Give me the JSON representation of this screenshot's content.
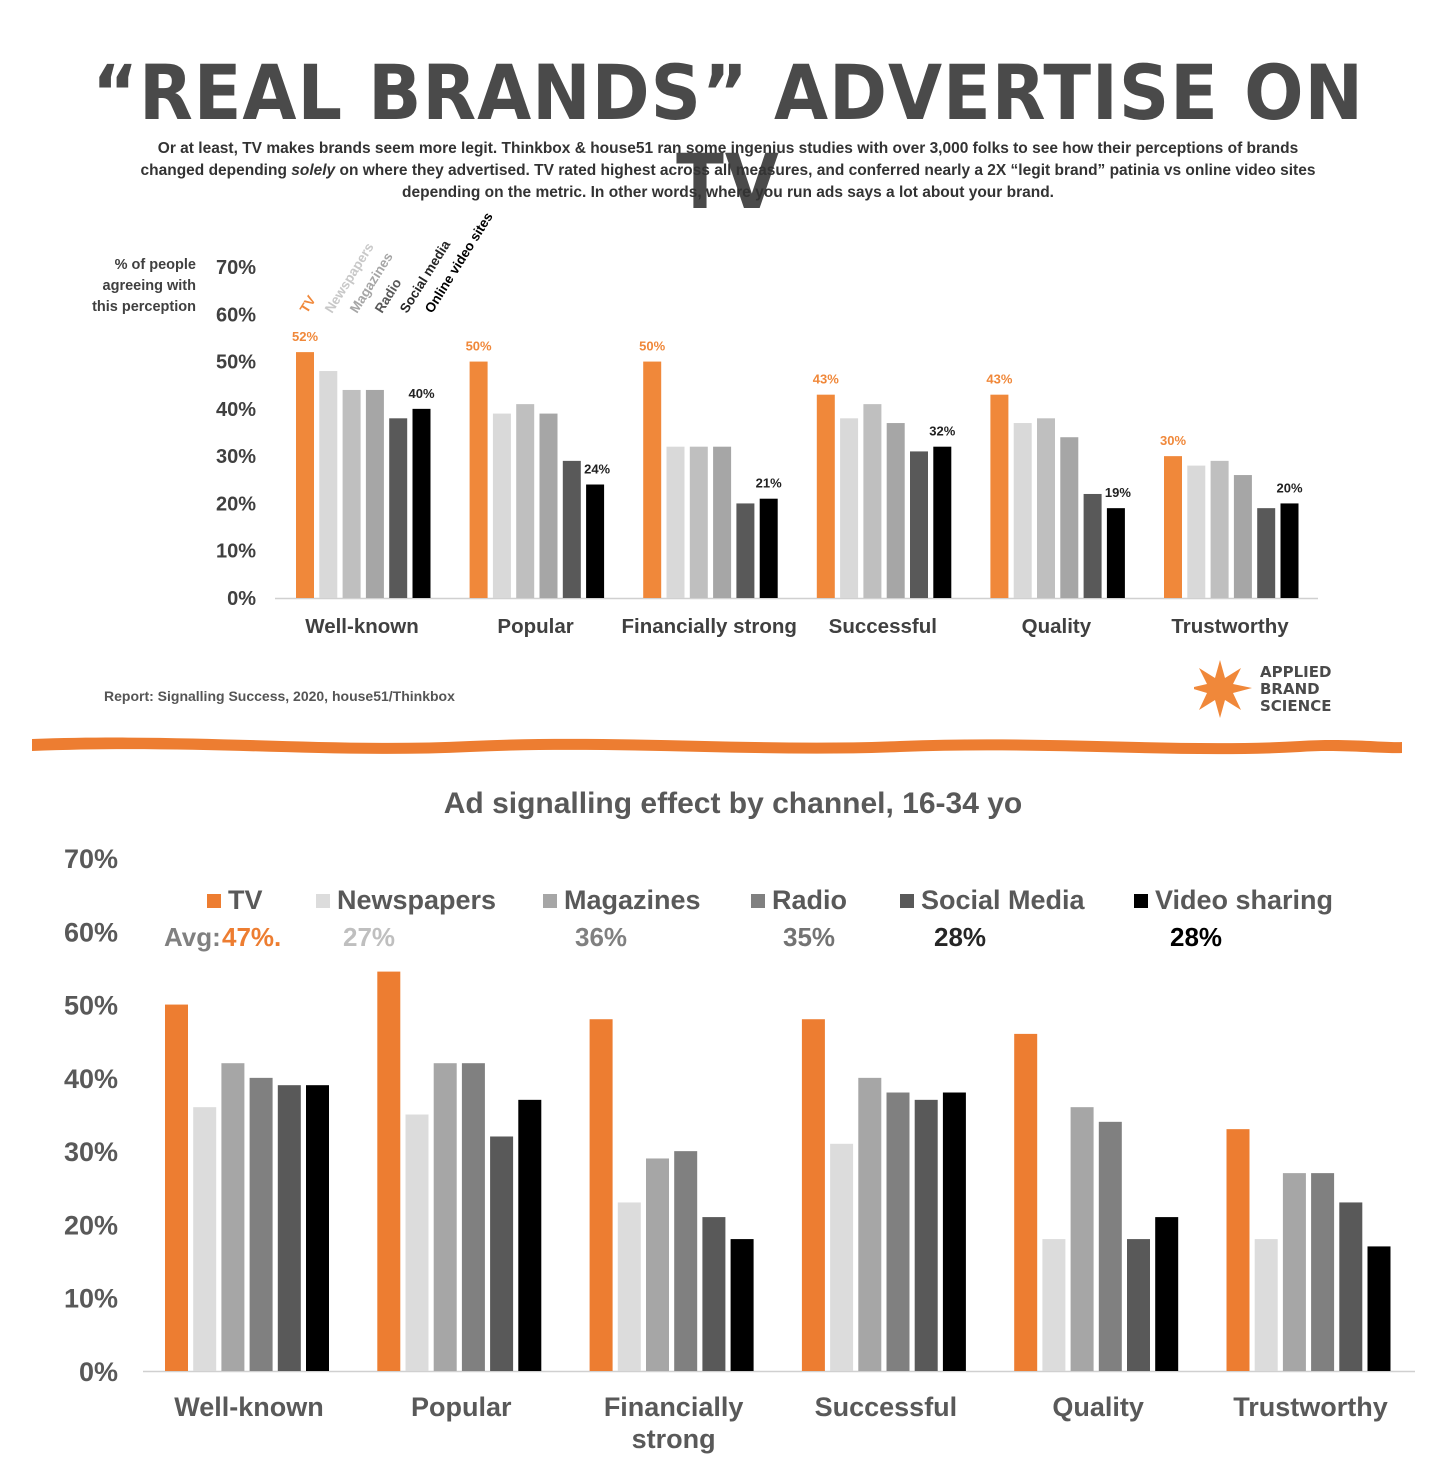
{
  "header": {
    "title": "“REAL BRANDS” ADVERTISE ON TV",
    "intro_part1": "Or at least, TV makes brands seem more legit. Thinkbox & house51 ran some ingenius studies with over 3,000 folks to see how their perceptions of brands changed depending ",
    "intro_emph": "solely",
    "intro_part2": " on where they advertised. TV rated highest across all measures, and conferred nearly a 2X “legit brand” patinia vs online video sites depending on the metric. In other words, where you run ads says a lot about your brand."
  },
  "source": "Report: Signalling Success, 2020, house51/Thinkbox",
  "logo": {
    "line1": "APPLIED",
    "line2": "BRAND",
    "line3": "SCIENCE",
    "icon": "star-burst-icon",
    "color": "#F0883A"
  },
  "chart_data": [
    {
      "type": "bar",
      "ylabel": "% of people agreeing with this perception",
      "ylabel_lines": [
        "% of people",
        "agreeing with",
        "this perception"
      ],
      "ylim": [
        0,
        70
      ],
      "yticks": [
        "0%",
        "10%",
        "20%",
        "30%",
        "40%",
        "50%",
        "60%",
        "70%"
      ],
      "categories": [
        "Well-known",
        "Popular",
        "Financially strong",
        "Successful",
        "Quality",
        "Trustworthy"
      ],
      "legend_placement": "rotated labels above first group",
      "series": [
        {
          "name": "TV",
          "color": "#F0883A",
          "values": [
            52,
            50,
            50,
            43,
            43,
            30
          ],
          "labels": [
            "52%",
            "50%",
            "50%",
            "43%",
            "43%",
            "30%"
          ]
        },
        {
          "name": "Newspapers",
          "color": "#D9D9D9",
          "values": [
            48,
            39,
            32,
            38,
            37,
            28
          ]
        },
        {
          "name": "Magazines",
          "color": "#BFBFBF",
          "values": [
            44,
            41,
            32,
            41,
            38,
            29
          ]
        },
        {
          "name": "Radio",
          "color": "#A6A6A6",
          "values": [
            44,
            39,
            32,
            37,
            34,
            26
          ]
        },
        {
          "name": "Social media",
          "color": "#595959",
          "values": [
            38,
            29,
            20,
            31,
            22,
            19
          ]
        },
        {
          "name": "Online video sites",
          "color": "#000000",
          "values": [
            40,
            24,
            21,
            32,
            19,
            20
          ],
          "labels": [
            "40%",
            "24%",
            "21%",
            "32%",
            "19%",
            "20%"
          ]
        }
      ]
    },
    {
      "type": "bar",
      "title": "Ad signalling effect by channel, 16-34 yo",
      "ylim": [
        0,
        70
      ],
      "yticks": [
        "0%",
        "10%",
        "20%",
        "30%",
        "40%",
        "50%",
        "60%",
        "70%"
      ],
      "categories": [
        "Well-known",
        "Popular",
        "Financially strong",
        "Successful",
        "Quality",
        "Trustworthy"
      ],
      "category_lines": [
        [
          "Well-known"
        ],
        [
          "Popular"
        ],
        [
          "Financially",
          "strong"
        ],
        [
          "Successful"
        ],
        [
          "Quality"
        ],
        [
          "Trustworthy"
        ]
      ],
      "legend_placement": "top",
      "avg_label": "Avg:",
      "series": [
        {
          "name": "TV",
          "color": "#ED7D31",
          "avg": "47%.",
          "avg_color": "#ED7D31",
          "values": [
            50,
            54.5,
            48,
            48,
            46,
            33
          ]
        },
        {
          "name": "Newspapers",
          "color": "#DCDCDC",
          "avg": "27%",
          "avg_color": "#BFBFBF",
          "values": [
            36,
            35,
            23,
            31,
            18,
            18
          ]
        },
        {
          "name": "Magazines",
          "color": "#A6A6A6",
          "avg": "36%",
          "avg_color": "#808080",
          "values": [
            42,
            42,
            29,
            40,
            36,
            27
          ]
        },
        {
          "name": "Radio",
          "color": "#808080",
          "avg": "35%",
          "avg_color": "#737373",
          "values": [
            40,
            42,
            30,
            38,
            34,
            27
          ]
        },
        {
          "name": "Social Media",
          "color": "#595959",
          "avg": "28%",
          "avg_color": "#262626",
          "values": [
            39,
            32,
            21,
            37,
            18,
            23
          ]
        },
        {
          "name": "Video sharing",
          "color": "#000000",
          "avg": "28%",
          "avg_color": "#000000",
          "values": [
            39,
            37,
            18,
            38,
            21,
            17
          ]
        }
      ]
    }
  ]
}
